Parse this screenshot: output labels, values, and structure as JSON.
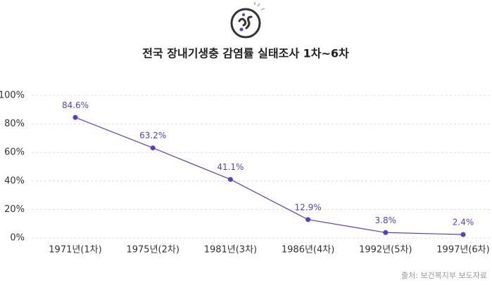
{
  "chart_data": {
    "type": "line",
    "title": "전국 장내기생충 감염률 실태조사 1차~6차",
    "source": "출처: 보건복지부 보도자료",
    "categories": [
      "1971년(1차)",
      "1975년(2차)",
      "1981년(3차)",
      "1986년(4차)",
      "1992년(5차)",
      "1997년(6차)"
    ],
    "values": [
      84.6,
      63.2,
      41.1,
      12.9,
      3.8,
      2.4
    ],
    "value_labels": [
      "84.6%",
      "63.2%",
      "41.1%",
      "12.9%",
      "3.8%",
      "2.4%"
    ],
    "color": "#5b3cc4",
    "ylim": [
      0,
      100
    ],
    "yticks": [
      {
        "value": 0,
        "label": "0%"
      },
      {
        "value": 20,
        "label": "20%"
      },
      {
        "value": 40,
        "label": "40%"
      },
      {
        "value": 60,
        "label": "60%"
      },
      {
        "value": 80,
        "label": "80%"
      },
      {
        "value": 100,
        "label": "100%"
      }
    ],
    "grid": true
  }
}
